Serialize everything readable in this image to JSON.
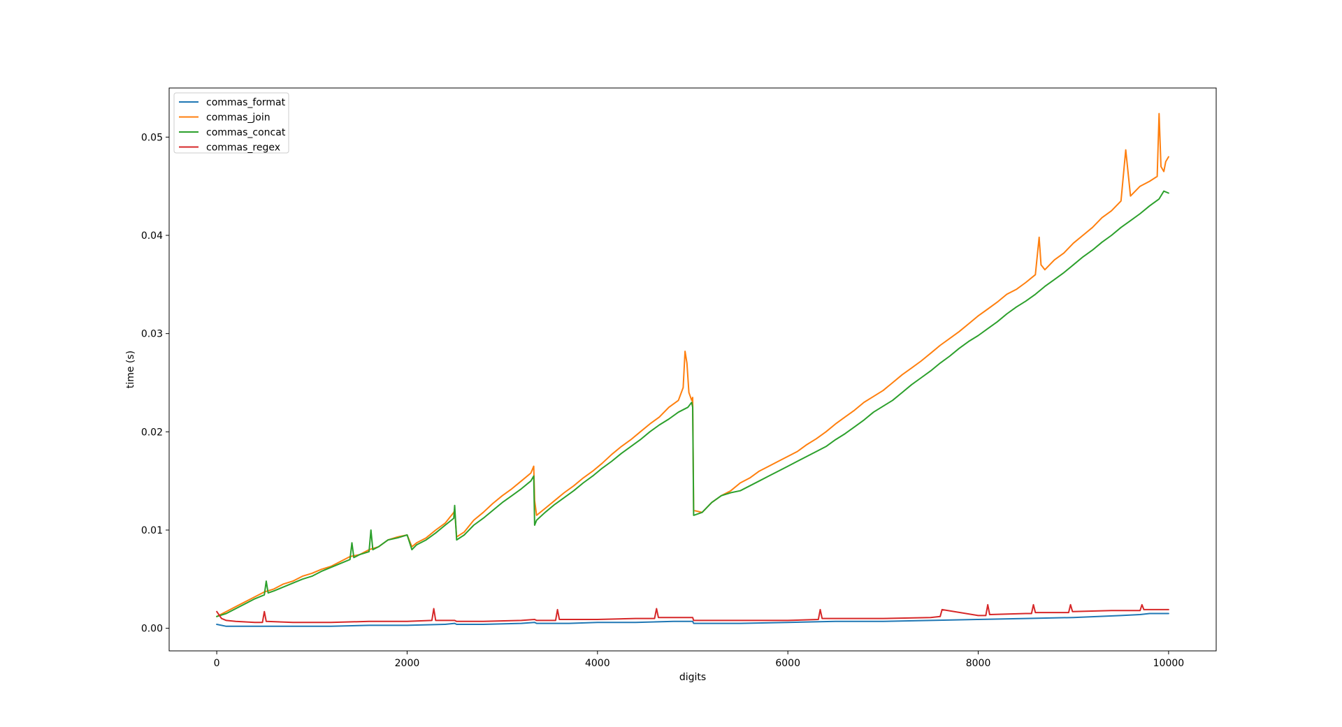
{
  "chart_data": {
    "type": "line",
    "title": "",
    "xlabel": "digits",
    "ylabel": "time (s)",
    "xlim": [
      -500,
      10500
    ],
    "ylim": [
      -0.0023,
      0.055
    ],
    "xticks": [
      0,
      2000,
      4000,
      6000,
      8000,
      10000
    ],
    "xtick_labels": [
      "0",
      "2000",
      "4000",
      "6000",
      "8000",
      "10000"
    ],
    "yticks": [
      0.0,
      0.01,
      0.02,
      0.03,
      0.04,
      0.05
    ],
    "ytick_labels": [
      "0.00",
      "0.01",
      "0.02",
      "0.03",
      "0.04",
      "0.05"
    ],
    "grid": false,
    "legend_position": "top-left",
    "series": [
      {
        "name": "commas_format",
        "color": "#1f77b4",
        "x": [
          0,
          100,
          300,
          500,
          800,
          1200,
          1600,
          2000,
          2400,
          2500,
          2520,
          2800,
          3200,
          3340,
          3360,
          3700,
          4000,
          4400,
          4800,
          5000,
          5010,
          5500,
          6000,
          6500,
          7000,
          7500,
          8000,
          8500,
          9000,
          9500,
          9700,
          9800,
          10000
        ],
        "y": [
          0.0004,
          0.0002,
          0.0002,
          0.0002,
          0.0002,
          0.0002,
          0.0003,
          0.0003,
          0.0004,
          0.0005,
          0.0004,
          0.0004,
          0.0005,
          0.0006,
          0.0005,
          0.0005,
          0.0006,
          0.0006,
          0.0007,
          0.0007,
          0.0005,
          0.0005,
          0.0006,
          0.0007,
          0.0007,
          0.0008,
          0.0009,
          0.001,
          0.0011,
          0.0013,
          0.0014,
          0.0015,
          0.0015
        ]
      },
      {
        "name": "commas_join",
        "color": "#ff7f0e",
        "x": [
          0,
          100,
          200,
          300,
          400,
          500,
          600,
          700,
          800,
          900,
          1000,
          1100,
          1200,
          1300,
          1400,
          1500,
          1600,
          1700,
          1800,
          1900,
          2000,
          2050,
          2100,
          2200,
          2300,
          2400,
          2490,
          2500,
          2520,
          2600,
          2700,
          2800,
          2900,
          3000,
          3100,
          3200,
          3300,
          3330,
          3340,
          3360,
          3450,
          3550,
          3650,
          3750,
          3850,
          3950,
          4050,
          4150,
          4250,
          4350,
          4450,
          4550,
          4650,
          4750,
          4850,
          4900,
          4920,
          4940,
          4960,
          4990,
          5000,
          5010,
          5100,
          5200,
          5300,
          5400,
          5500,
          5600,
          5700,
          5800,
          5900,
          6000,
          6100,
          6200,
          6300,
          6400,
          6500,
          6600,
          6700,
          6800,
          6900,
          7000,
          7100,
          7200,
          7300,
          7400,
          7500,
          7600,
          7700,
          7800,
          7900,
          8000,
          8100,
          8200,
          8300,
          8400,
          8500,
          8600,
          8640,
          8660,
          8700,
          8800,
          8900,
          9000,
          9100,
          9200,
          9300,
          9400,
          9500,
          9550,
          9600,
          9700,
          9800,
          9880,
          9900,
          9920,
          9950,
          9970,
          10000
        ],
        "y": [
          0.0012,
          0.0017,
          0.0022,
          0.0027,
          0.0032,
          0.0037,
          0.004,
          0.0045,
          0.0048,
          0.0053,
          0.0056,
          0.006,
          0.0063,
          0.0068,
          0.0073,
          0.0075,
          0.008,
          0.0083,
          0.009,
          0.0093,
          0.0095,
          0.0083,
          0.0087,
          0.0092,
          0.01,
          0.0107,
          0.0118,
          0.012,
          0.0093,
          0.0098,
          0.011,
          0.0118,
          0.0127,
          0.0135,
          0.0142,
          0.015,
          0.0158,
          0.0165,
          0.013,
          0.0115,
          0.0122,
          0.013,
          0.0138,
          0.0145,
          0.0153,
          0.016,
          0.0168,
          0.0177,
          0.0185,
          0.0192,
          0.02,
          0.0208,
          0.0215,
          0.0225,
          0.0232,
          0.0245,
          0.0282,
          0.027,
          0.024,
          0.0232,
          0.0235,
          0.012,
          0.0118,
          0.0128,
          0.0135,
          0.014,
          0.0148,
          0.0153,
          0.016,
          0.0165,
          0.017,
          0.0175,
          0.018,
          0.0187,
          0.0193,
          0.02,
          0.0208,
          0.0215,
          0.0222,
          0.023,
          0.0236,
          0.0242,
          0.025,
          0.0258,
          0.0265,
          0.0272,
          0.028,
          0.0288,
          0.0295,
          0.0302,
          0.031,
          0.0318,
          0.0325,
          0.0332,
          0.034,
          0.0345,
          0.0352,
          0.036,
          0.0398,
          0.037,
          0.0365,
          0.0375,
          0.0382,
          0.0392,
          0.04,
          0.0408,
          0.0418,
          0.0425,
          0.0435,
          0.0487,
          0.044,
          0.045,
          0.0455,
          0.046,
          0.0524,
          0.047,
          0.0465,
          0.0475,
          0.048
        ]
      },
      {
        "name": "commas_concat",
        "color": "#2ca02c",
        "x": [
          0,
          100,
          200,
          300,
          400,
          500,
          520,
          540,
          600,
          700,
          800,
          900,
          1000,
          1100,
          1200,
          1300,
          1400,
          1420,
          1440,
          1500,
          1600,
          1620,
          1640,
          1700,
          1800,
          1900,
          2000,
          2050,
          2100,
          2200,
          2300,
          2400,
          2490,
          2500,
          2520,
          2600,
          2700,
          2800,
          2900,
          3000,
          3100,
          3200,
          3300,
          3330,
          3340,
          3360,
          3450,
          3550,
          3650,
          3750,
          3850,
          3950,
          4050,
          4150,
          4250,
          4350,
          4450,
          4550,
          4650,
          4750,
          4850,
          4950,
          4990,
          5000,
          5010,
          5100,
          5200,
          5300,
          5400,
          5500,
          5600,
          5700,
          5800,
          5900,
          6000,
          6100,
          6200,
          6300,
          6400,
          6500,
          6600,
          6700,
          6800,
          6900,
          7000,
          7100,
          7200,
          7300,
          7400,
          7500,
          7600,
          7700,
          7800,
          7900,
          8000,
          8100,
          8200,
          8300,
          8400,
          8500,
          8600,
          8700,
          8800,
          8900,
          9000,
          9100,
          9200,
          9300,
          9400,
          9500,
          9600,
          9700,
          9800,
          9900,
          9950,
          10000
        ],
        "y": [
          0.0012,
          0.0015,
          0.002,
          0.0025,
          0.003,
          0.0034,
          0.0048,
          0.0036,
          0.0038,
          0.0042,
          0.0046,
          0.005,
          0.0053,
          0.0058,
          0.0062,
          0.0066,
          0.007,
          0.0087,
          0.0072,
          0.0075,
          0.0078,
          0.01,
          0.008,
          0.0083,
          0.009,
          0.0092,
          0.0095,
          0.008,
          0.0085,
          0.009,
          0.0097,
          0.0105,
          0.0112,
          0.0125,
          0.009,
          0.0095,
          0.0105,
          0.0112,
          0.012,
          0.0128,
          0.0135,
          0.0142,
          0.015,
          0.0155,
          0.0105,
          0.011,
          0.0118,
          0.0126,
          0.0133,
          0.014,
          0.0148,
          0.0155,
          0.0163,
          0.017,
          0.0178,
          0.0185,
          0.0192,
          0.02,
          0.0207,
          0.0213,
          0.022,
          0.0225,
          0.023,
          0.0225,
          0.0115,
          0.0118,
          0.0128,
          0.0135,
          0.0138,
          0.014,
          0.0145,
          0.015,
          0.0155,
          0.016,
          0.0165,
          0.017,
          0.0175,
          0.018,
          0.0185,
          0.0192,
          0.0198,
          0.0205,
          0.0212,
          0.022,
          0.0226,
          0.0232,
          0.024,
          0.0248,
          0.0255,
          0.0262,
          0.027,
          0.0277,
          0.0285,
          0.0292,
          0.0298,
          0.0305,
          0.0312,
          0.032,
          0.0327,
          0.0333,
          0.034,
          0.0348,
          0.0355,
          0.0362,
          0.037,
          0.0378,
          0.0385,
          0.0393,
          0.04,
          0.0408,
          0.0415,
          0.0422,
          0.043,
          0.0437,
          0.0445,
          0.0443
        ]
      },
      {
        "name": "commas_regex",
        "color": "#d62728",
        "x": [
          0,
          50,
          100,
          200,
          400,
          480,
          500,
          520,
          800,
          1200,
          1600,
          2000,
          2260,
          2280,
          2300,
          2500,
          2520,
          2800,
          3200,
          3340,
          3360,
          3560,
          3580,
          3600,
          4000,
          4400,
          4600,
          4620,
          4640,
          4800,
          5000,
          5010,
          5500,
          6000,
          6320,
          6340,
          6360,
          7000,
          7500,
          7600,
          7620,
          8000,
          8080,
          8100,
          8120,
          8500,
          8560,
          8580,
          8600,
          8950,
          8970,
          8990,
          9400,
          9700,
          9720,
          9740,
          10000
        ],
        "y": [
          0.0017,
          0.001,
          0.0008,
          0.0007,
          0.0006,
          0.0006,
          0.0017,
          0.0007,
          0.0006,
          0.0006,
          0.0007,
          0.0007,
          0.0008,
          0.002,
          0.0008,
          0.0008,
          0.0007,
          0.0007,
          0.0008,
          0.0009,
          0.0008,
          0.0008,
          0.0019,
          0.0009,
          0.0009,
          0.001,
          0.001,
          0.002,
          0.0011,
          0.0011,
          0.0011,
          0.0008,
          0.0008,
          0.0008,
          0.0009,
          0.0019,
          0.001,
          0.001,
          0.0011,
          0.0012,
          0.0019,
          0.0013,
          0.0013,
          0.0024,
          0.0014,
          0.0015,
          0.0015,
          0.0024,
          0.0016,
          0.0016,
          0.0024,
          0.0017,
          0.0018,
          0.0018,
          0.0024,
          0.0019,
          0.0019
        ]
      }
    ]
  }
}
